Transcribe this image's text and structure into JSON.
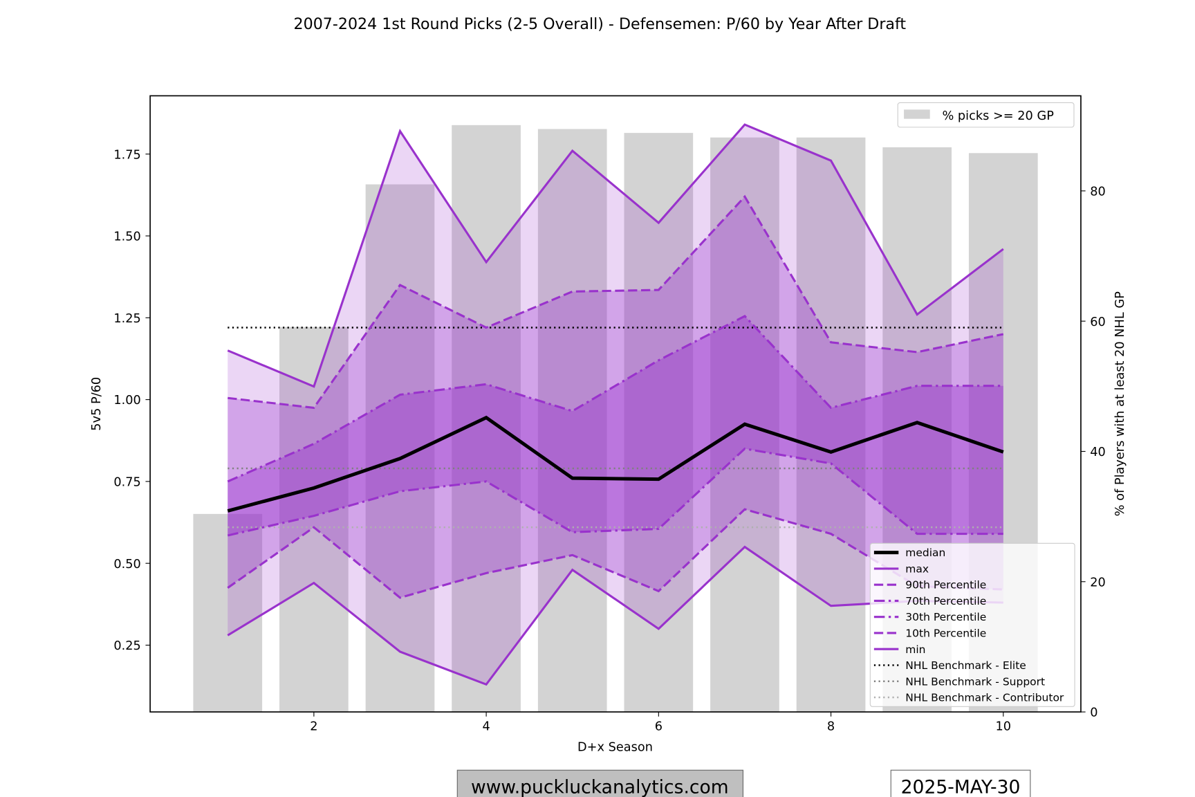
{
  "chart_data": {
    "type": "line",
    "title": "2007-2024 1st Round Picks (2-5 Overall) - Defensemen: P/60 by Year After Draft",
    "xlabel": "D+x Season",
    "ylabel": "5v5 P/60",
    "ylabel_right": "% of Players with at least 20 NHL GP",
    "x": [
      1,
      2,
      3,
      4,
      5,
      6,
      7,
      8,
      9,
      10
    ],
    "xlim": [
      0.1,
      10.9
    ],
    "ylim": [
      0.046,
      1.928
    ],
    "ylim_right": [
      0,
      94.6
    ],
    "xticks": [
      2,
      4,
      6,
      8,
      10
    ],
    "yticks": [
      0.25,
      0.5,
      0.75,
      1.0,
      1.25,
      1.5,
      1.75
    ],
    "yticks_right": [
      0,
      20,
      40,
      60,
      80
    ],
    "grid": false,
    "bars": {
      "name": "% picks >= 20 GP",
      "color": "#d3d3d3",
      "legend": "top-right",
      "values": [
        30.4,
        59.1,
        81.0,
        90.1,
        89.5,
        88.9,
        88.2,
        88.2,
        86.7,
        85.8
      ]
    },
    "series": [
      {
        "name": "median",
        "color": "#000000",
        "style": "solid",
        "values": [
          0.66,
          0.73,
          0.82,
          0.945,
          0.76,
          0.757,
          0.925,
          0.84,
          0.93,
          0.84
        ]
      },
      {
        "name": "max",
        "color": "#9932cc",
        "style": "solid",
        "values": [
          1.15,
          1.04,
          1.82,
          1.42,
          1.76,
          1.54,
          1.84,
          1.73,
          1.26,
          1.46
        ]
      },
      {
        "name": "90th Percentile",
        "color": "#9932cc",
        "style": "dashed",
        "values": [
          1.005,
          0.975,
          1.35,
          1.22,
          1.33,
          1.335,
          1.62,
          1.175,
          1.145,
          1.2
        ]
      },
      {
        "name": "70th Percentile",
        "color": "#9932cc",
        "style": "dashdot",
        "values": [
          0.75,
          0.865,
          1.015,
          1.047,
          0.965,
          1.12,
          1.255,
          0.975,
          1.042,
          1.042
        ]
      },
      {
        "name": "30th Percentile",
        "color": "#9932cc",
        "style": "dashdot",
        "values": [
          0.585,
          0.645,
          0.72,
          0.75,
          0.595,
          0.605,
          0.85,
          0.805,
          0.59,
          0.59
        ]
      },
      {
        "name": "10th Percentile",
        "color": "#9932cc",
        "style": "dashed",
        "values": [
          0.425,
          0.61,
          0.395,
          0.47,
          0.525,
          0.415,
          0.665,
          0.59,
          0.43,
          0.42
        ]
      },
      {
        "name": "min",
        "color": "#9932cc",
        "style": "solid",
        "values": [
          0.28,
          0.44,
          0.23,
          0.13,
          0.48,
          0.3,
          0.55,
          0.37,
          0.385,
          0.38
        ]
      }
    ],
    "benchmarks": [
      {
        "name": "NHL Benchmark - Elite",
        "value": 1.22,
        "color": "#000000"
      },
      {
        "name": "NHL Benchmark - Support",
        "value": 0.79,
        "color": "#808080"
      },
      {
        "name": "NHL Benchmark - Contributor",
        "value": 0.61,
        "color": "#b0b0b0"
      }
    ],
    "legend_placement": "lower-right"
  },
  "footer": {
    "website": "www.puckluckanalytics.com",
    "date": "2025-MAY-30"
  }
}
